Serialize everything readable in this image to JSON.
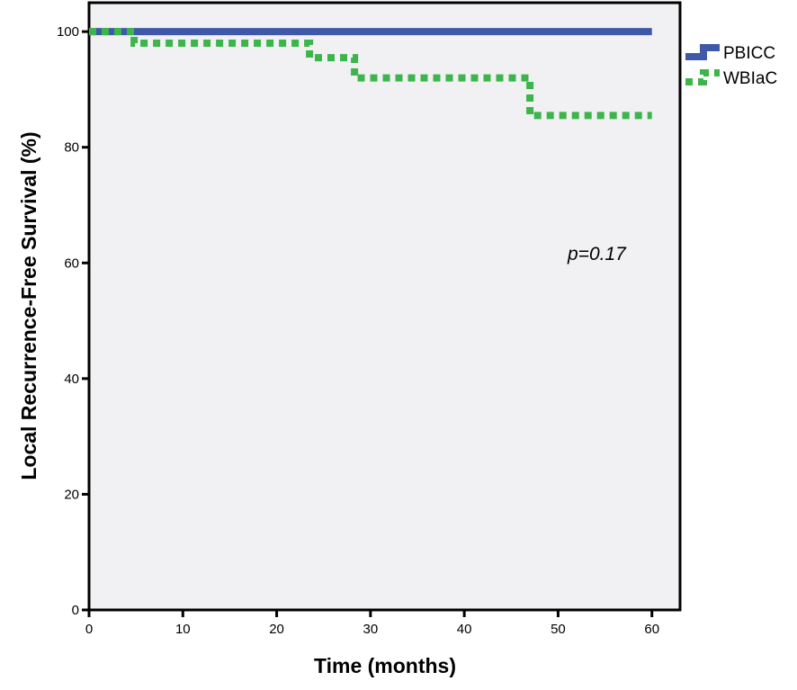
{
  "chart_data": {
    "type": "line",
    "subtype": "kaplan-meier step curve",
    "xlabel": "Time (months)",
    "ylabel": "Local Recurrence-Free Survival (%)",
    "xlim": [
      0,
      63
    ],
    "ylim": [
      0,
      105
    ],
    "xticks": [
      0,
      10,
      20,
      30,
      40,
      50,
      60
    ],
    "yticks": [
      0,
      20,
      40,
      60,
      80,
      100
    ],
    "grid": false,
    "plot_background": "#f1f1f4",
    "legend_position": "right-top",
    "annotation": "p=0.17",
    "series": [
      {
        "name": "PBICC",
        "color": "#3f58a8",
        "dash": "solid",
        "points": [
          [
            0,
            100
          ],
          [
            60,
            100
          ]
        ]
      },
      {
        "name": "WBIaC",
        "color": "#3cb54a",
        "dash": "dotted",
        "points": [
          [
            0,
            100
          ],
          [
            4.8,
            100
          ],
          [
            4.8,
            98
          ],
          [
            23.5,
            98
          ],
          [
            23.5,
            95.5
          ],
          [
            28.3,
            95.5
          ],
          [
            28.3,
            92
          ],
          [
            47,
            92
          ],
          [
            47,
            85.5
          ],
          [
            60,
            85.5
          ]
        ]
      }
    ]
  }
}
